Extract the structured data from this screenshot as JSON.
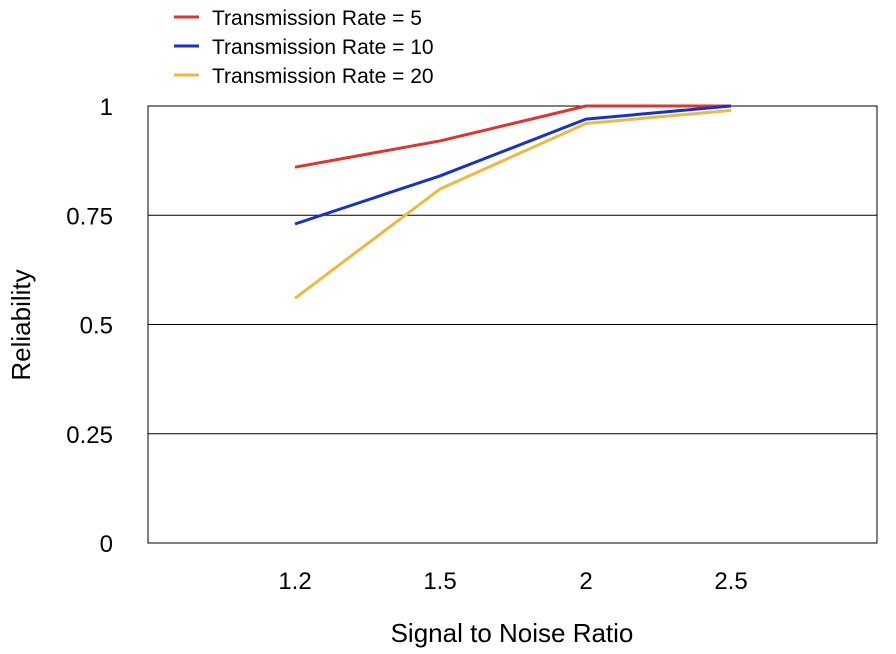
{
  "chart_data": {
    "type": "line",
    "title": "",
    "xlabel": "Signal to Noise Ratio",
    "ylabel": "Reliability",
    "categories": [
      "1.2",
      "1.5",
      "2",
      "2.5"
    ],
    "ylim": [
      0,
      1
    ],
    "yticks": [
      {
        "value": 0,
        "label": "0"
      },
      {
        "value": 0.25,
        "label": "0.25"
      },
      {
        "value": 0.5,
        "label": "0.5"
      },
      {
        "value": 0.75,
        "label": "0.75"
      },
      {
        "value": 1,
        "label": "1"
      }
    ],
    "grid": "horizontal",
    "legend_position": "top-left",
    "series": [
      {
        "name": "Transmission Rate = 5",
        "color": "#e0352b",
        "values": [
          0.86,
          0.92,
          1.0,
          1.0
        ]
      },
      {
        "name": "Transmission Rate = 10",
        "color": "#1432d2",
        "values": [
          0.73,
          0.84,
          0.97,
          1.0
        ]
      },
      {
        "name": "Transmission Rate = 20",
        "color": "#f0b93c",
        "values": [
          0.56,
          0.81,
          0.96,
          0.99
        ]
      }
    ]
  }
}
